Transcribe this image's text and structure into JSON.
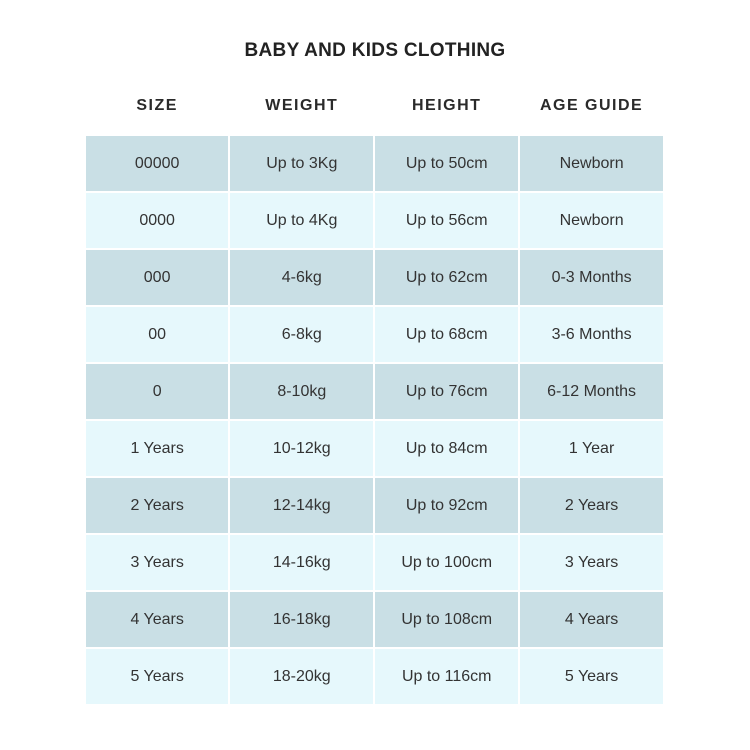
{
  "title": "BABY AND KIDS CLOTHING",
  "colors": {
    "row_dark": "#c9dfe5",
    "row_light": "#e6f8fc",
    "border": "#ffffff"
  },
  "columns": [
    "SIZE",
    "WEIGHT",
    "HEIGHT",
    "AGE GUIDE"
  ],
  "rows": [
    [
      "00000",
      "Up to 3Kg",
      "Up to 50cm",
      "Newborn"
    ],
    [
      "0000",
      "Up to 4Kg",
      "Up to 56cm",
      "Newborn"
    ],
    [
      "000",
      "4-6kg",
      "Up to 62cm",
      "0-3 Months"
    ],
    [
      "00",
      "6-8kg",
      "Up to 68cm",
      "3-6 Months"
    ],
    [
      "0",
      "8-10kg",
      "Up to 76cm",
      "6-12 Months"
    ],
    [
      "1 Years",
      "10-12kg",
      "Up to 84cm",
      "1 Year"
    ],
    [
      "2 Years",
      "12-14kg",
      "Up to 92cm",
      "2 Years"
    ],
    [
      "3 Years",
      "14-16kg",
      "Up to 100cm",
      "3 Years"
    ],
    [
      "4 Years",
      "16-18kg",
      "Up to 108cm",
      "4 Years"
    ],
    [
      "5 Years",
      "18-20kg",
      "Up to 116cm",
      "5 Years"
    ]
  ]
}
